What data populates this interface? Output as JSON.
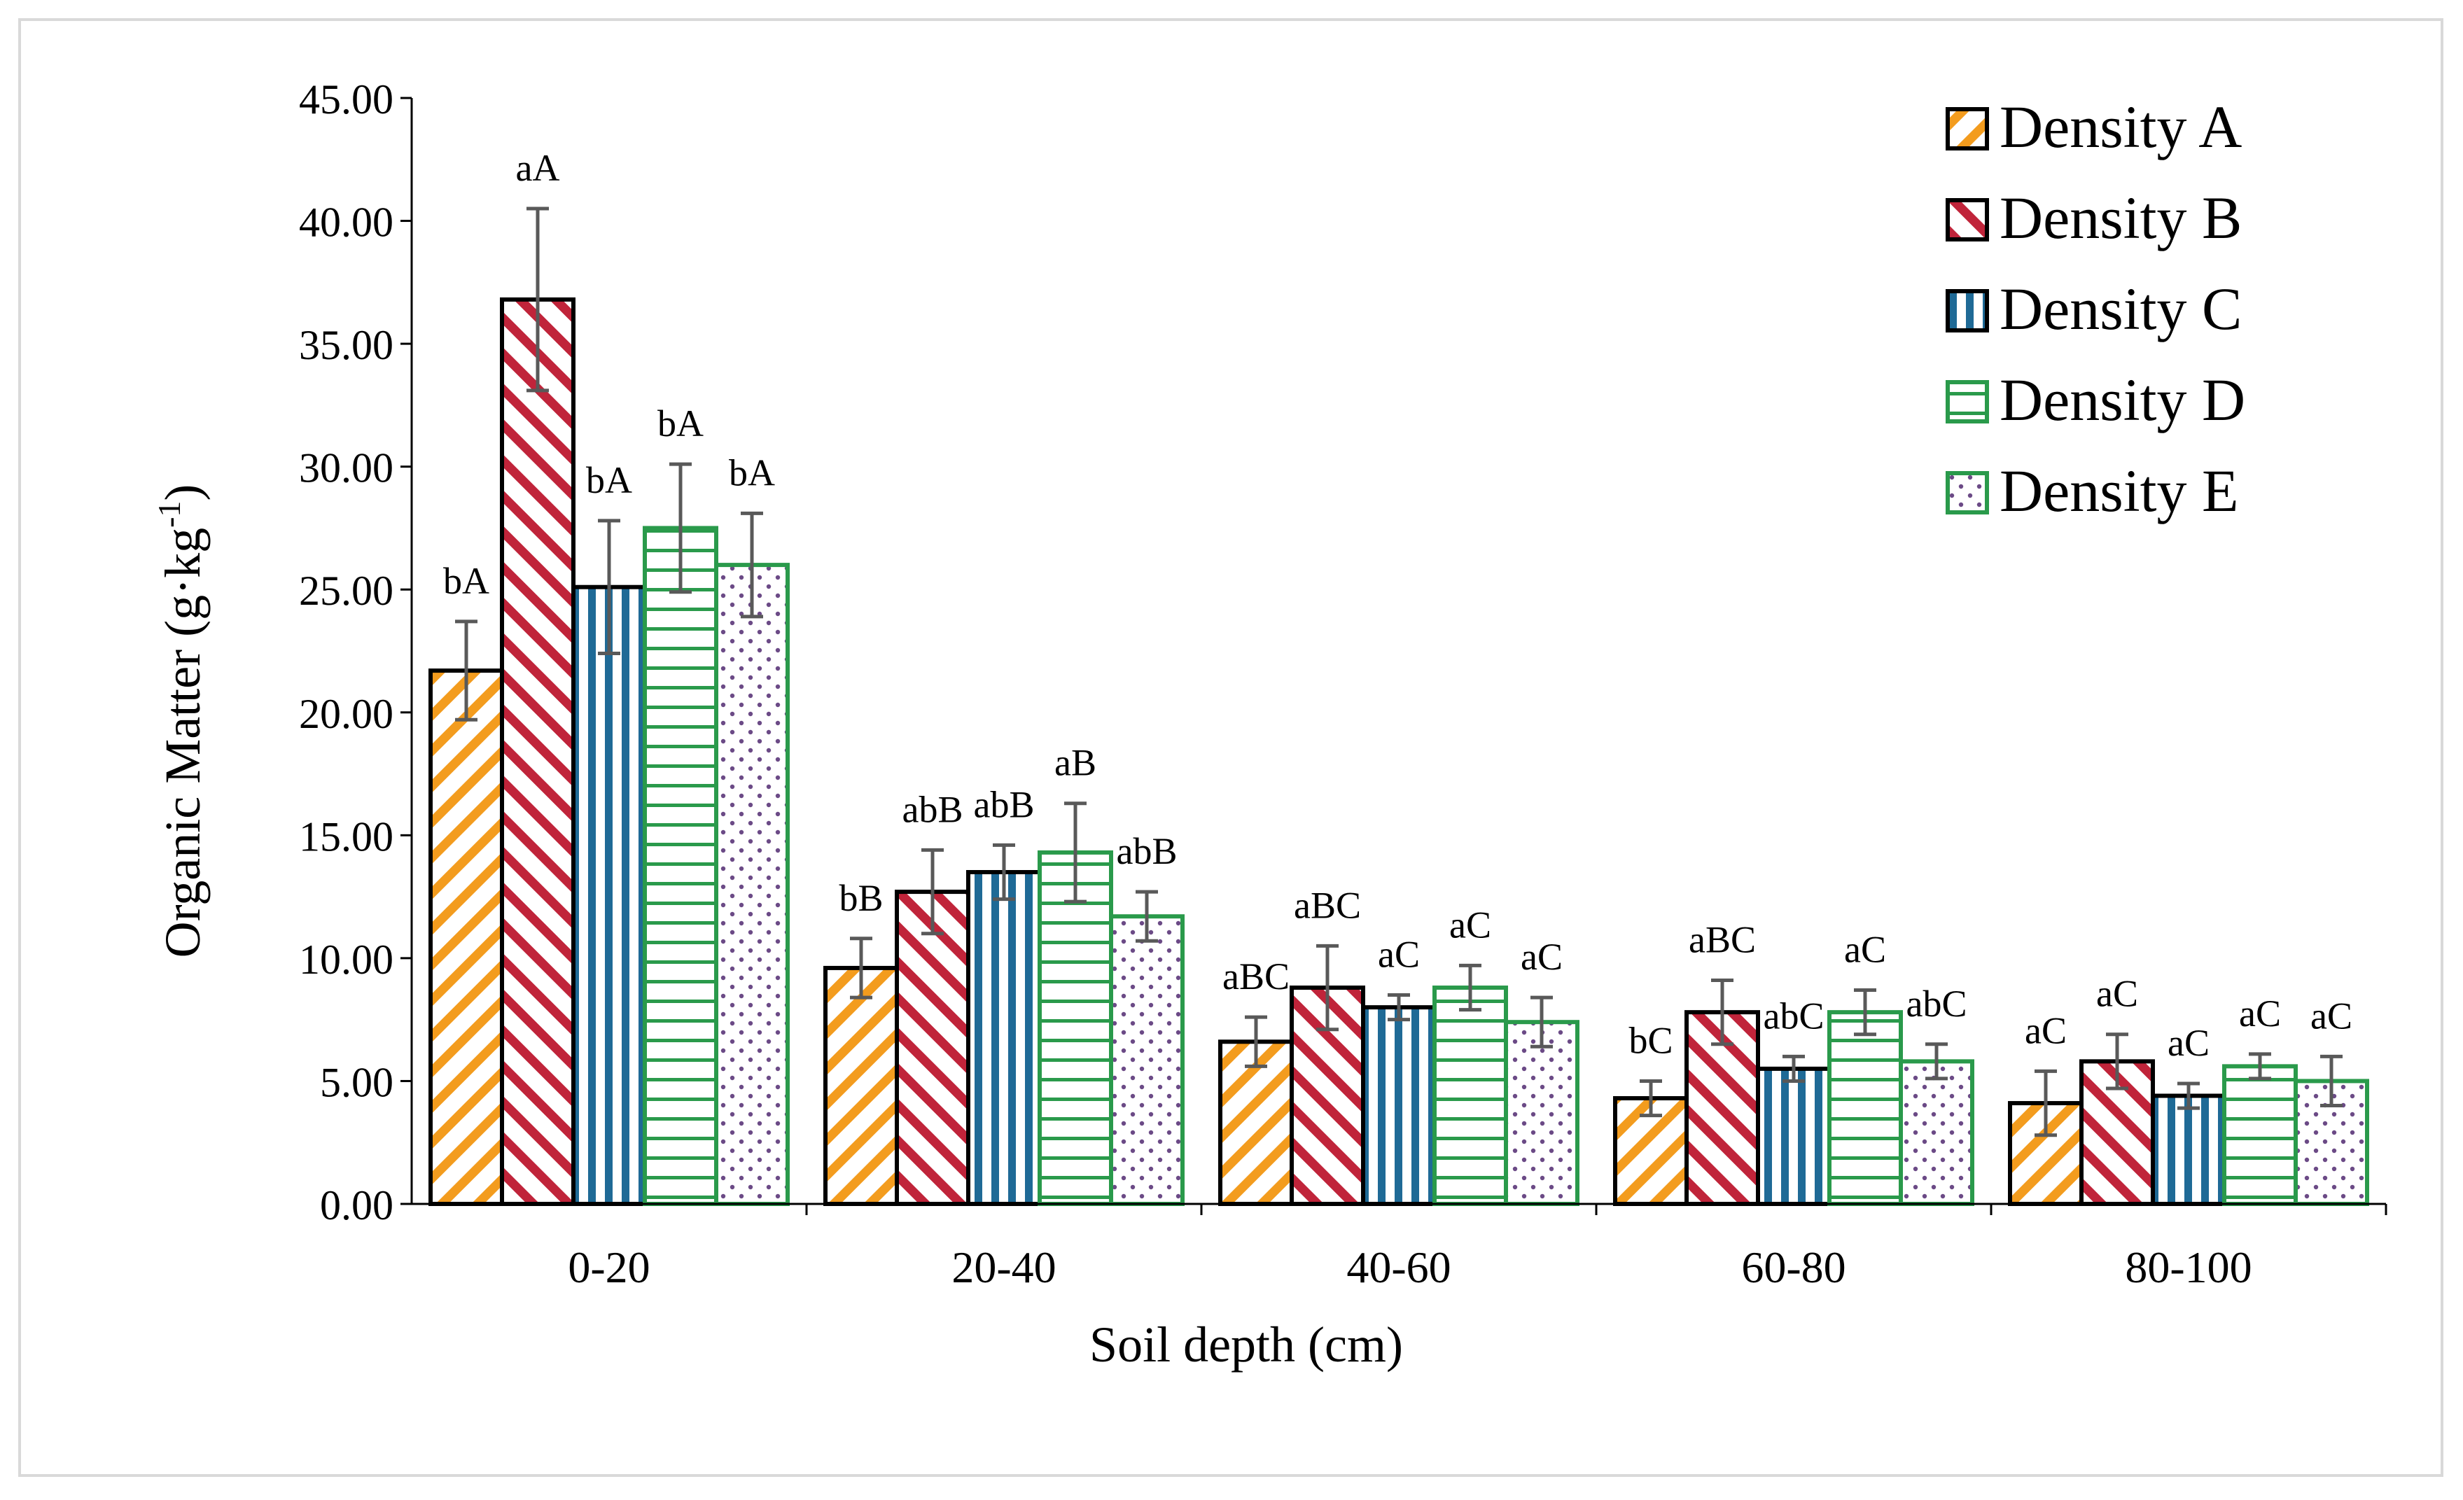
{
  "colors": {
    "frame": "#d9d9d9",
    "axis": "#000000",
    "error_bar": "#595959",
    "background": "#ffffff"
  },
  "chart_data": {
    "type": "bar",
    "xlabel": "Soil depth (cm)",
    "ylabel": "Organic Matter (g·kg",
    "ylabel_superscript": "-1",
    "ylabel_close": ")",
    "ylim": [
      0,
      45
    ],
    "yticks": [
      "0.00",
      "5.00",
      "10.00",
      "15.00",
      "20.00",
      "25.00",
      "30.00",
      "35.00",
      "40.00",
      "45.00"
    ],
    "categories": [
      "0-20",
      "20-40",
      "40-60",
      "60-80",
      "80-100"
    ],
    "legend_position": "top-right",
    "series": [
      {
        "name": "Density A",
        "pattern": "diagonal-stripes-up",
        "color": "#f39c1e",
        "border": "#000000",
        "values": [
          21.7,
          9.6,
          6.6,
          4.3,
          4.1
        ],
        "errors": [
          2.0,
          1.2,
          1.0,
          0.7,
          1.3
        ],
        "labels": [
          "bA",
          "bB",
          "aBC",
          "bC",
          "aC"
        ]
      },
      {
        "name": "Density B",
        "pattern": "diagonal-stripes-down",
        "color": "#c0243a",
        "border": "#000000",
        "values": [
          36.8,
          12.7,
          8.8,
          7.8,
          5.8
        ],
        "errors": [
          3.7,
          1.7,
          1.7,
          1.3,
          1.1
        ],
        "labels": [
          "aA",
          "abB",
          "aBC",
          "aBC",
          "aC"
        ]
      },
      {
        "name": "Density C",
        "pattern": "vertical-stripes",
        "color": "#1f6a96",
        "border": "#000000",
        "values": [
          25.1,
          13.5,
          8.0,
          5.5,
          4.4
        ],
        "errors": [
          2.7,
          1.1,
          0.5,
          0.5,
          0.5
        ],
        "labels": [
          "bA",
          "abB",
          "aC",
          "abC",
          "aC"
        ]
      },
      {
        "name": "Density D",
        "pattern": "horizontal-stripes",
        "color": "#2a9a4b",
        "border": "#2a9a4b",
        "values": [
          27.5,
          14.3,
          8.8,
          7.8,
          5.6
        ],
        "errors": [
          2.6,
          2.0,
          0.9,
          0.9,
          0.5
        ],
        "labels": [
          "bA",
          "aB",
          "aC",
          "aC",
          "aC"
        ]
      },
      {
        "name": "Density E",
        "pattern": "dots",
        "color": "#6b4a86",
        "border": "#2a9a4b",
        "values": [
          26.0,
          11.7,
          7.4,
          5.8,
          5.0
        ],
        "errors": [
          2.1,
          1.0,
          1.0,
          0.7,
          1.0
        ],
        "labels": [
          "bA",
          "abB",
          "aC",
          "abC",
          "aC"
        ]
      }
    ]
  }
}
